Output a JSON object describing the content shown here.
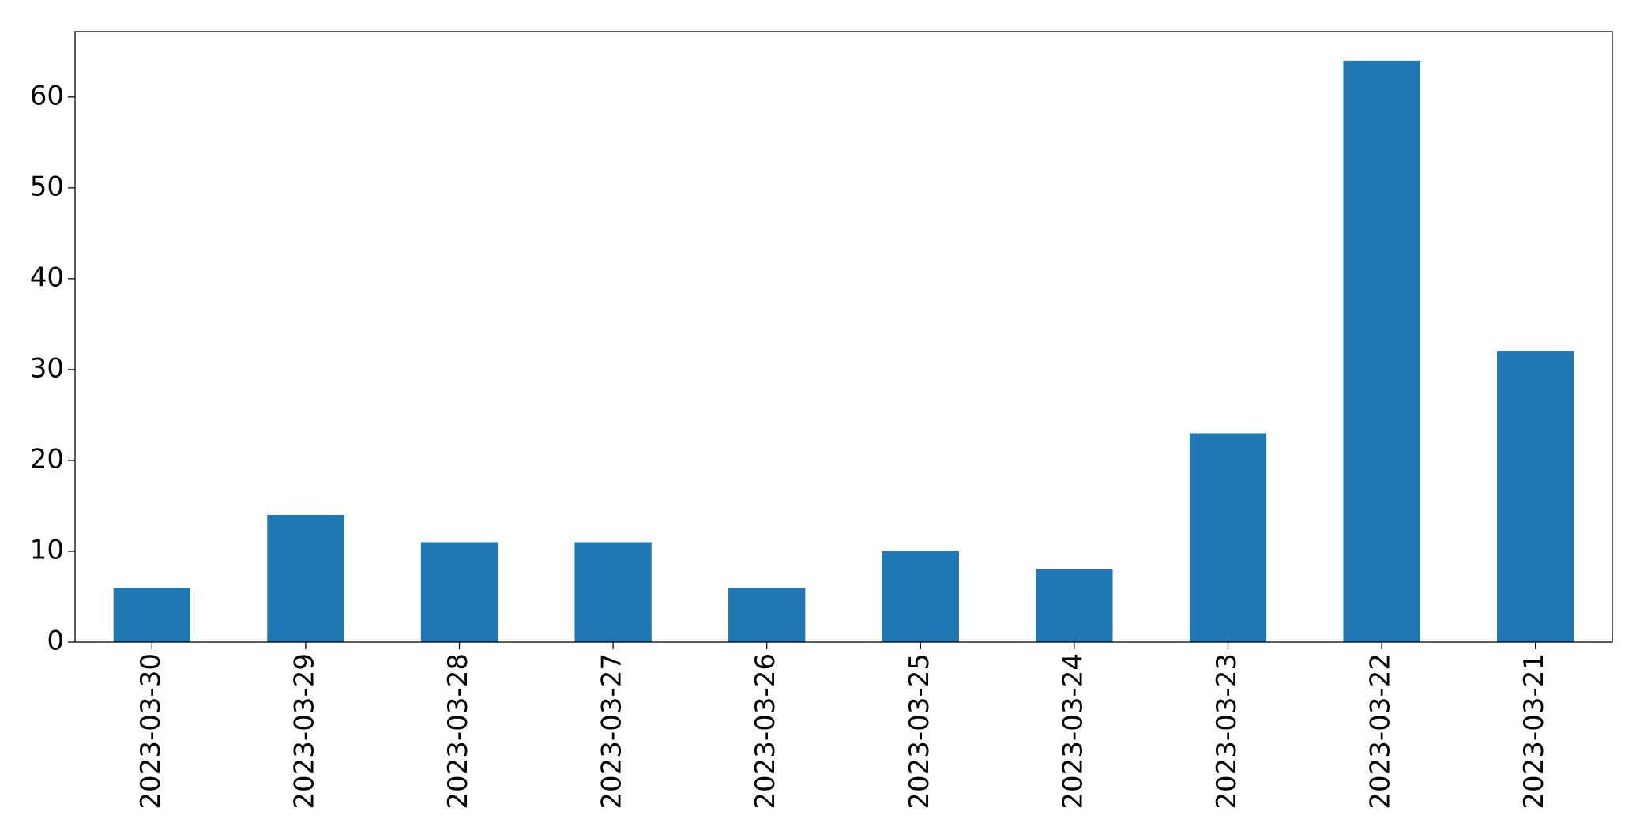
{
  "chart_data": {
    "type": "bar",
    "title": "",
    "xlabel": "",
    "ylabel": "",
    "categories": [
      "2023-03-30",
      "2023-03-29",
      "2023-03-28",
      "2023-03-27",
      "2023-03-26",
      "2023-03-25",
      "2023-03-24",
      "2023-03-23",
      "2023-03-22",
      "2023-03-21"
    ],
    "values": [
      6,
      14,
      11,
      11,
      6,
      10,
      8,
      23,
      64,
      32
    ],
    "ylim": [
      0,
      67.2
    ],
    "yticks": [
      0,
      10,
      20,
      30,
      40,
      50,
      60
    ],
    "grid": false,
    "legend": "none",
    "bar_color": "#1f77b4"
  }
}
